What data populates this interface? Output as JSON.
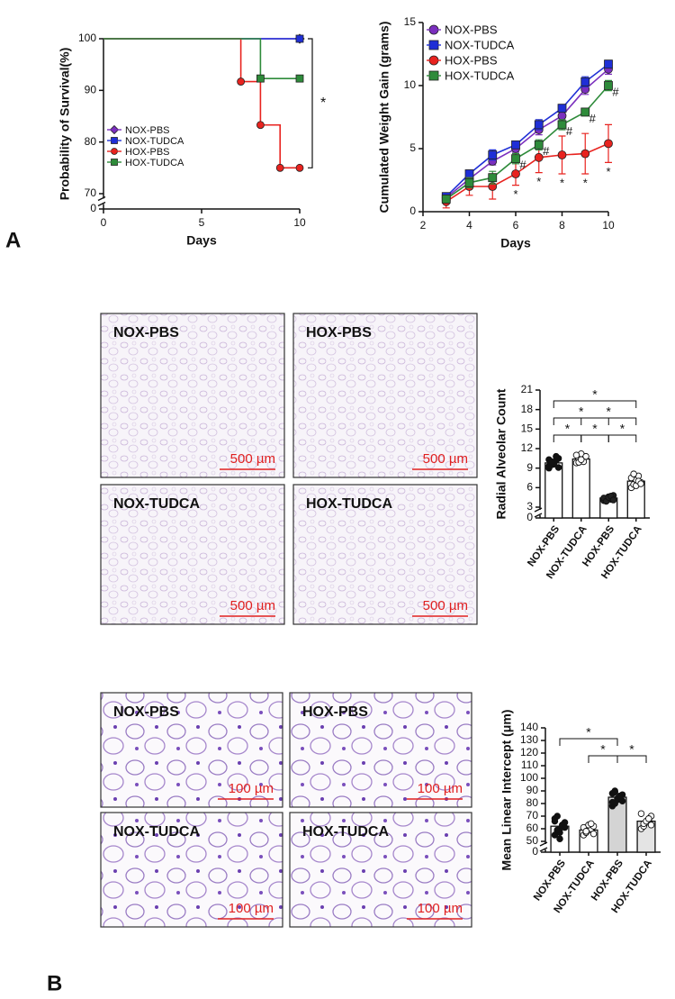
{
  "panel_labels": [
    "A",
    "B"
  ],
  "micrographs": [
    {
      "label": "NOX-PBS",
      "scale": "500 µm"
    },
    {
      "label": "HOX-PBS",
      "scale": "500 µm"
    },
    {
      "label": "NOX-TUDCA",
      "scale": "500 µm"
    },
    {
      "label": "HOX-TUDCA",
      "scale": "500 µm"
    },
    {
      "label": "NOX-PBS",
      "scale": "100 µm"
    },
    {
      "label": "HOX-PBS",
      "scale": "100 µm"
    },
    {
      "label": "NOX-TUDCA",
      "scale": "100 µm"
    },
    {
      "label": "HOX-TUDCA",
      "scale": "100 µm"
    }
  ],
  "chart_data": [
    {
      "type": "line",
      "step": true,
      "ylabel": "Probability of Survival(%)",
      "xlabel": "Days",
      "xlim": [
        0,
        10
      ],
      "xticks": [
        0,
        5,
        10
      ],
      "ylim": [
        0,
        100
      ],
      "ybreak": [
        0,
        70
      ],
      "yticks": [
        0,
        70,
        80,
        90,
        100
      ],
      "legend": "lower left",
      "series": [
        {
          "name": "NOX-PBS",
          "color": "#7b2fbe",
          "marker": "diamond",
          "x": [
            0,
            10
          ],
          "values": [
            100,
            100
          ]
        },
        {
          "name": "NOX-TUDCA",
          "color": "#1f2fd6",
          "marker": "square",
          "x": [
            0,
            10
          ],
          "values": [
            100,
            100
          ]
        },
        {
          "name": "HOX-PBS",
          "color": "#e8231f",
          "marker": "circle",
          "x": [
            0,
            7,
            8,
            9,
            10
          ],
          "values": [
            100,
            91.7,
            83.3,
            75,
            75
          ]
        },
        {
          "name": "HOX-TUDCA",
          "color": "#2e8b3a",
          "marker": "square",
          "x": [
            0,
            8,
            10
          ],
          "values": [
            100,
            92.3,
            92.3
          ]
        }
      ],
      "significance": [
        {
          "y": [
            100,
            75
          ],
          "label": "*"
        }
      ]
    },
    {
      "type": "line",
      "ylabel": "Cumulated Weight Gain (grams)",
      "xlabel": "Days",
      "xlim": [
        2,
        10
      ],
      "xticks": [
        2,
        4,
        6,
        8,
        10
      ],
      "ylim": [
        0,
        15
      ],
      "yticks": [
        0,
        5,
        10,
        15
      ],
      "legend": "upper left",
      "series": [
        {
          "name": "NOX-PBS",
          "color": "#7b2fbe",
          "marker": "circle",
          "x": [
            3,
            4,
            5,
            6,
            7,
            8,
            9,
            10
          ],
          "values": [
            1.1,
            2.6,
            4.0,
            5.0,
            6.5,
            7.6,
            9.7,
            11.3
          ],
          "errors": [
            0.3,
            0.3,
            0.3,
            0.3,
            0.4,
            0.4,
            0.4,
            0.4
          ]
        },
        {
          "name": "NOX-TUDCA",
          "color": "#1f2fd6",
          "marker": "square",
          "x": [
            3,
            4,
            5,
            6,
            7,
            8,
            9,
            10
          ],
          "values": [
            1.2,
            3.0,
            4.5,
            5.3,
            6.9,
            8.2,
            10.3,
            11.7
          ],
          "errors": [
            0.2,
            0.3,
            0.4,
            0.3,
            0.4,
            0.3,
            0.4,
            0.3
          ]
        },
        {
          "name": "HOX-PBS",
          "color": "#e8231f",
          "marker": "circle",
          "x": [
            3,
            4,
            5,
            6,
            7,
            8,
            9,
            10
          ],
          "values": [
            0.8,
            2.0,
            2.0,
            3.0,
            4.3,
            4.5,
            4.6,
            5.4
          ],
          "errors": [
            0.5,
            0.7,
            1.0,
            0.9,
            1.2,
            1.5,
            1.6,
            1.5
          ],
          "point_labels": [
            null,
            null,
            null,
            "*",
            "*",
            "*",
            "*",
            "*"
          ]
        },
        {
          "name": "HOX-TUDCA",
          "color": "#2e8b3a",
          "marker": "square",
          "x": [
            3,
            4,
            5,
            6,
            7,
            8,
            9,
            10
          ],
          "values": [
            1.0,
            2.3,
            2.7,
            4.2,
            5.3,
            6.9,
            7.9,
            10.0
          ],
          "errors": [
            0.3,
            0.4,
            0.5,
            0.4,
            0.4,
            0.4,
            0.3,
            0.4
          ],
          "point_labels": [
            null,
            null,
            null,
            "#",
            "#",
            "#",
            "#",
            "#"
          ]
        }
      ]
    },
    {
      "type": "bar",
      "ylabel": "Radial Alveolar Count",
      "categories": [
        "NOX-PBS",
        "NOX-TUDCA",
        "HOX-PBS",
        "HOX-TUDCA"
      ],
      "values": [
        9.8,
        10.4,
        4.4,
        7.0
      ],
      "bar_colors": [
        "#ffffff",
        "#ffffff",
        "#ffffff",
        "#ffffff"
      ],
      "point_colors": [
        "#111111",
        "#ffffff",
        "#222222",
        "#ffffff"
      ],
      "points": [
        [
          9.0,
          9.5,
          9.8,
          10.2,
          10.5,
          9.3,
          10.0,
          9.6,
          10.8,
          9.1,
          10.3,
          9.9
        ],
        [
          9.8,
          10.5,
          11.2,
          10.0,
          10.8,
          11.0,
          9.9,
          10.3
        ],
        [
          4.0,
          4.3,
          4.6,
          4.2,
          4.8,
          4.4,
          3.9,
          4.5,
          4.7,
          4.1
        ],
        [
          6.0,
          6.5,
          7.2,
          7.8,
          6.8,
          7.5,
          8.1,
          6.3,
          7.0,
          6.6
        ]
      ],
      "ylim": [
        0,
        21
      ],
      "ybreak": [
        0,
        3
      ],
      "yticks": [
        0,
        3,
        6,
        9,
        12,
        15,
        18,
        21
      ],
      "significance": [
        {
          "pair": [
            0,
            1
          ],
          "label": "*"
        },
        {
          "pair": [
            1,
            2
          ],
          "label": "*"
        },
        {
          "pair": [
            2,
            3
          ],
          "label": "*"
        },
        {
          "pair": [
            0,
            2
          ],
          "label": "*"
        },
        {
          "pair": [
            1,
            3
          ],
          "label": "*"
        },
        {
          "pair": [
            0,
            3
          ],
          "label": "*"
        }
      ]
    },
    {
      "type": "bar",
      "ylabel": "Mean Linear Intercept (μm)",
      "categories": [
        "NOX-PBS",
        "NOX-TUDCA",
        "HOX-PBS",
        "HOX-TUDCA"
      ],
      "values": [
        62,
        59,
        85,
        66
      ],
      "bar_colors": [
        "#ffffff",
        "#ffffff",
        "#d4d4d4",
        "#e4e4e4"
      ],
      "point_colors": [
        "#111111",
        "#ffffff",
        "#111111",
        "#ffffff"
      ],
      "points": [
        [
          55,
          58,
          60,
          62,
          65,
          68,
          70,
          57,
          63,
          61,
          66,
          59,
          52
        ],
        [
          55,
          57,
          59,
          60,
          62,
          61,
          58,
          63,
          64,
          56
        ],
        [
          78,
          80,
          83,
          85,
          87,
          88,
          90,
          84,
          86,
          82,
          81,
          89
        ],
        [
          60,
          62,
          65,
          67,
          70,
          72,
          64,
          66,
          68,
          63
        ]
      ],
      "ylim": [
        0,
        140
      ],
      "ybreak": [
        0,
        50
      ],
      "yticks": [
        0,
        50,
        60,
        70,
        80,
        90,
        100,
        110,
        120,
        130,
        140
      ],
      "significance": [
        {
          "pair": [
            1,
            2
          ],
          "label": "*"
        },
        {
          "pair": [
            2,
            3
          ],
          "label": "*"
        },
        {
          "pair": [
            0,
            2
          ],
          "label": "*"
        }
      ]
    }
  ]
}
